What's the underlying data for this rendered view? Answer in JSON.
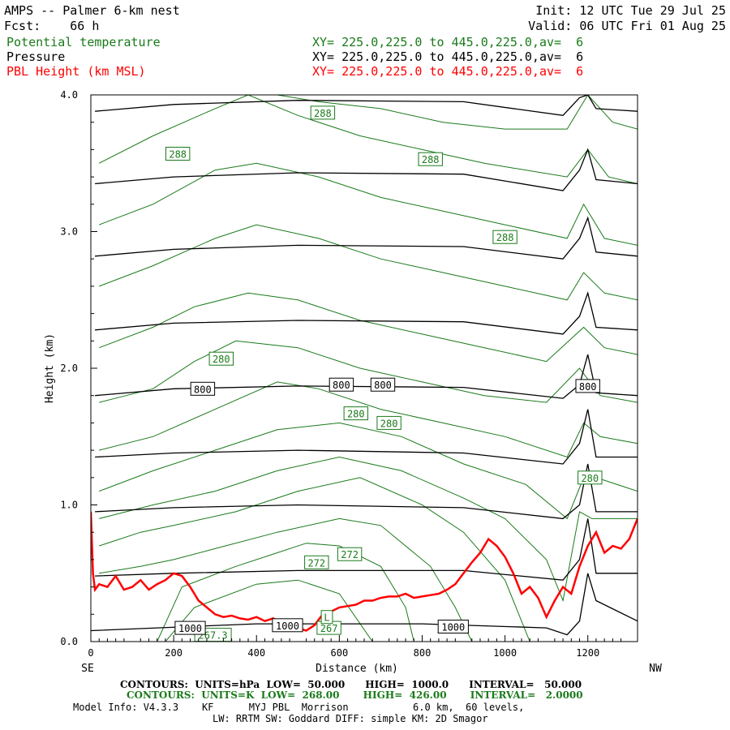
{
  "header": {
    "title": "AMPS -- Palmer 6-km nest",
    "init": "Init: 12 UTC Tue 29 Jul 25",
    "fcst": "Fcst:    66 h",
    "valid": "Valid: 06 UTC Fri 01 Aug 25",
    "fields": [
      {
        "name": "Potential temperature",
        "xy": "XY= 225.0,225.0 to 445.0,225.0,av=  6"
      },
      {
        "name": "Pressure",
        "xy": "XY= 225.0,225.0 to 445.0,225.0,av=  6"
      },
      {
        "name": "PBL Height (km MSL)",
        "xy": "XY= 225.0,225.0 to 445.0,225.0,av=  6"
      }
    ]
  },
  "colors": {
    "theta": "#1a7a1a",
    "pressure": "#000000",
    "pbl": "#ff0000"
  },
  "footer": {
    "pressure_contours": "CONTOURS:  UNITS=hPa  LOW=  50.000      HIGH=  1000.0      INTERVAL=   50.000",
    "theta_contours": "CONTOURS:  UNITS=K  LOW=  268.00       HIGH=  426.00       INTERVAL=   2.0000",
    "model_info": "Model Info: V4.3.3    KF      MYJ PBL  Morrison           6.0 km,  60 levels,",
    "physics": "LW: RRTM SW: Goddard DIFF: simple KM: 2D Smagor"
  },
  "chart_data": {
    "type": "line",
    "xlabel": "Distance (km)",
    "ylabel": "Height (km)",
    "xlim": [
      0,
      1320
    ],
    "ylim": [
      0,
      4
    ],
    "x_ticks": [
      0,
      200,
      400,
      600,
      800,
      1000,
      1200
    ],
    "x_tick_labels": [
      "0",
      "200",
      "400",
      "600",
      "800",
      "1000",
      "1200"
    ],
    "y_ticks": [
      0,
      1,
      2,
      3,
      4
    ],
    "y_tick_labels": [
      "0.0",
      "1.0",
      "2.0",
      "3.0",
      "4.0"
    ],
    "left_label": "SE",
    "right_label": "NW",
    "grid": false,
    "pressure_levels": [
      {
        "x": [
          0,
          400,
          800,
          1100,
          1150,
          1180,
          1200,
          1220,
          1320
        ],
        "y": [
          0.08,
          0.13,
          0.13,
          0.1,
          0.05,
          0.15,
          0.5,
          0.3,
          0.15
        ]
      },
      {
        "x": [
          10,
          200,
          500,
          900,
          1140,
          1180,
          1200,
          1220,
          1320
        ],
        "y": [
          0.48,
          0.5,
          0.52,
          0.52,
          0.45,
          0.6,
          0.9,
          0.5,
          0.5
        ]
      },
      {
        "x": [
          10,
          200,
          500,
          900,
          1140,
          1180,
          1200,
          1220,
          1320
        ],
        "y": [
          0.95,
          0.98,
          1.0,
          0.98,
          0.9,
          1.0,
          1.3,
          0.95,
          0.95
        ]
      },
      {
        "x": [
          10,
          200,
          500,
          900,
          1140,
          1180,
          1200,
          1220,
          1320
        ],
        "y": [
          1.35,
          1.38,
          1.4,
          1.38,
          1.3,
          1.45,
          1.7,
          1.35,
          1.35
        ]
      },
      {
        "x": [
          10,
          200,
          500,
          900,
          1140,
          1180,
          1200,
          1220,
          1320
        ],
        "y": [
          1.8,
          1.85,
          1.87,
          1.86,
          1.78,
          1.88,
          2.1,
          1.82,
          1.8
        ]
      },
      {
        "x": [
          10,
          200,
          500,
          900,
          1140,
          1180,
          1200,
          1220,
          1320
        ],
        "y": [
          2.28,
          2.33,
          2.35,
          2.34,
          2.25,
          2.38,
          2.55,
          2.3,
          2.28
        ]
      },
      {
        "x": [
          10,
          200,
          500,
          900,
          1140,
          1180,
          1200,
          1220,
          1320
        ],
        "y": [
          2.82,
          2.87,
          2.9,
          2.89,
          2.8,
          2.95,
          3.1,
          2.85,
          2.82
        ]
      },
      {
        "x": [
          10,
          200,
          500,
          900,
          1140,
          1180,
          1200,
          1220,
          1320
        ],
        "y": [
          3.35,
          3.4,
          3.43,
          3.42,
          3.3,
          3.45,
          3.6,
          3.38,
          3.35
        ]
      },
      {
        "x": [
          10,
          200,
          500,
          900,
          1140,
          1180,
          1200,
          1220,
          1320
        ],
        "y": [
          3.88,
          3.93,
          3.96,
          3.95,
          3.85,
          3.98,
          4.0,
          3.9,
          3.88
        ]
      }
    ],
    "theta_levels": [
      {
        "x": [
          180,
          250,
          400,
          500,
          600,
          680
        ],
        "y": [
          0.0,
          0.25,
          0.42,
          0.45,
          0.35,
          0.0
        ]
      },
      {
        "x": [
          160,
          220,
          350,
          450,
          520,
          600,
          700,
          760,
          780
        ],
        "y": [
          0.0,
          0.4,
          0.55,
          0.65,
          0.72,
          0.7,
          0.55,
          0.25,
          0.0
        ]
      },
      {
        "x": [
          20,
          120,
          200,
          300,
          450,
          600,
          700,
          820,
          880,
          920
        ],
        "y": [
          0.5,
          0.55,
          0.6,
          0.68,
          0.8,
          0.9,
          0.85,
          0.55,
          0.25,
          0.0
        ]
      },
      {
        "x": [
          20,
          120,
          200,
          350,
          500,
          650,
          800,
          900,
          1000,
          1060
        ],
        "y": [
          0.7,
          0.8,
          0.85,
          0.95,
          1.1,
          1.2,
          1.0,
          0.8,
          0.45,
          0.0
        ]
      },
      {
        "x": [
          20,
          150,
          300,
          450,
          600,
          750,
          900,
          1000,
          1100,
          1140,
          1180,
          1210,
          1320
        ],
        "y": [
          0.9,
          1.0,
          1.1,
          1.25,
          1.35,
          1.25,
          1.05,
          0.9,
          0.6,
          0.3,
          0.95,
          0.9,
          0.9
        ]
      },
      {
        "x": [
          20,
          150,
          300,
          450,
          600,
          750,
          900,
          1050,
          1150,
          1190,
          1220,
          1320
        ],
        "y": [
          1.1,
          1.25,
          1.4,
          1.55,
          1.6,
          1.5,
          1.3,
          1.15,
          0.9,
          1.2,
          1.2,
          1.1
        ]
      },
      {
        "x": [
          20,
          150,
          300,
          450,
          550,
          700,
          850,
          1000,
          1150,
          1190,
          1230,
          1320
        ],
        "y": [
          1.4,
          1.5,
          1.7,
          1.9,
          1.85,
          1.7,
          1.6,
          1.5,
          1.35,
          1.6,
          1.5,
          1.45
        ]
      },
      {
        "x": [
          20,
          150,
          250,
          350,
          500,
          650,
          800,
          950,
          1100,
          1180,
          1230,
          1320
        ],
        "y": [
          1.75,
          1.85,
          2.05,
          2.2,
          2.15,
          2.0,
          1.9,
          1.8,
          1.75,
          2.0,
          1.8,
          1.75
        ]
      },
      {
        "x": [
          20,
          150,
          250,
          380,
          500,
          650,
          800,
          950,
          1100,
          1190,
          1240,
          1320
        ],
        "y": [
          2.15,
          2.3,
          2.45,
          2.55,
          2.5,
          2.35,
          2.25,
          2.15,
          2.05,
          2.3,
          2.15,
          2.1
        ]
      },
      {
        "x": [
          20,
          150,
          300,
          400,
          550,
          700,
          850,
          1000,
          1150,
          1190,
          1240,
          1320
        ],
        "y": [
          2.6,
          2.75,
          2.95,
          3.05,
          2.95,
          2.8,
          2.7,
          2.6,
          2.5,
          2.7,
          2.55,
          2.5
        ]
      },
      {
        "x": [
          20,
          150,
          300,
          400,
          550,
          700,
          850,
          1000,
          1150,
          1190,
          1240,
          1320
        ],
        "y": [
          3.05,
          3.2,
          3.45,
          3.5,
          3.4,
          3.25,
          3.15,
          3.05,
          2.95,
          3.2,
          2.95,
          2.9
        ]
      },
      {
        "x": [
          20,
          150,
          300,
          380,
          500,
          650,
          800,
          950,
          1150,
          1200,
          1250,
          1320
        ],
        "y": [
          3.5,
          3.7,
          3.9,
          4.0,
          3.85,
          3.7,
          3.6,
          3.5,
          3.4,
          3.6,
          3.4,
          3.35
        ]
      },
      {
        "x": [
          450,
          550,
          700,
          850,
          1000,
          1150,
          1200,
          1260,
          1320
        ],
        "y": [
          4.0,
          3.95,
          3.9,
          3.8,
          3.75,
          3.75,
          4.0,
          3.8,
          3.75
        ]
      }
    ],
    "pbl_height": {
      "x": [
        0,
        5,
        10,
        20,
        40,
        60,
        80,
        100,
        120,
        140,
        160,
        180,
        200,
        220,
        240,
        260,
        280,
        300,
        320,
        340,
        360,
        380,
        400,
        420,
        440,
        460,
        480,
        500,
        520,
        540,
        560,
        580,
        600,
        620,
        640,
        660,
        680,
        700,
        720,
        740,
        760,
        780,
        800,
        820,
        840,
        860,
        880,
        900,
        920,
        940,
        960,
        980,
        1000,
        1020,
        1040,
        1060,
        1080,
        1100,
        1120,
        1140,
        1160,
        1180,
        1200,
        1220,
        1240,
        1260,
        1280,
        1300,
        1320
      ],
      "y": [
        0.95,
        0.5,
        0.38,
        0.42,
        0.4,
        0.48,
        0.38,
        0.4,
        0.45,
        0.38,
        0.42,
        0.45,
        0.5,
        0.48,
        0.4,
        0.3,
        0.25,
        0.2,
        0.18,
        0.19,
        0.17,
        0.16,
        0.18,
        0.15,
        0.17,
        0.14,
        0.15,
        0.1,
        0.08,
        0.12,
        0.2,
        0.22,
        0.25,
        0.26,
        0.27,
        0.3,
        0.3,
        0.32,
        0.33,
        0.33,
        0.35,
        0.32,
        0.33,
        0.34,
        0.35,
        0.38,
        0.42,
        0.5,
        0.58,
        0.65,
        0.75,
        0.7,
        0.62,
        0.5,
        0.35,
        0.4,
        0.32,
        0.18,
        0.3,
        0.4,
        0.35,
        0.55,
        0.7,
        0.8,
        0.65,
        0.7,
        0.68,
        0.75,
        0.9
      ]
    },
    "contour_labels": [
      {
        "text": "288",
        "x": 560,
        "y": 3.87,
        "kind": "theta"
      },
      {
        "text": "288",
        "x": 210,
        "y": 3.57,
        "kind": "theta"
      },
      {
        "text": "288",
        "x": 820,
        "y": 3.53,
        "kind": "theta"
      },
      {
        "text": "288",
        "x": 1000,
        "y": 2.96,
        "kind": "theta"
      },
      {
        "text": "280",
        "x": 315,
        "y": 2.07,
        "kind": "theta"
      },
      {
        "text": "280",
        "x": 640,
        "y": 1.67,
        "kind": "theta"
      },
      {
        "text": "280",
        "x": 720,
        "y": 1.6,
        "kind": "theta"
      },
      {
        "text": "280",
        "x": 1205,
        "y": 1.2,
        "kind": "theta"
      },
      {
        "text": "272",
        "x": 545,
        "y": 0.58,
        "kind": "theta"
      },
      {
        "text": "272",
        "x": 625,
        "y": 0.64,
        "kind": "theta"
      },
      {
        "text": "267",
        "x": 575,
        "y": 0.1,
        "kind": "theta"
      },
      {
        "text": "L",
        "x": 570,
        "y": 0.18,
        "kind": "theta"
      },
      {
        "text": "267.3",
        "x": 295,
        "y": 0.05,
        "kind": "theta"
      },
      {
        "text": "800",
        "x": 270,
        "y": 1.85,
        "kind": "pressure"
      },
      {
        "text": "800",
        "x": 605,
        "y": 1.88,
        "kind": "pressure"
      },
      {
        "text": "800",
        "x": 705,
        "y": 1.88,
        "kind": "pressure"
      },
      {
        "text": "800",
        "x": 1200,
        "y": 1.87,
        "kind": "pressure"
      },
      {
        "text": "1000",
        "x": 240,
        "y": 0.1,
        "kind": "pressure"
      },
      {
        "text": "1000",
        "x": 475,
        "y": 0.12,
        "kind": "pressure"
      },
      {
        "text": "1000",
        "x": 875,
        "y": 0.11,
        "kind": "pressure"
      }
    ]
  }
}
